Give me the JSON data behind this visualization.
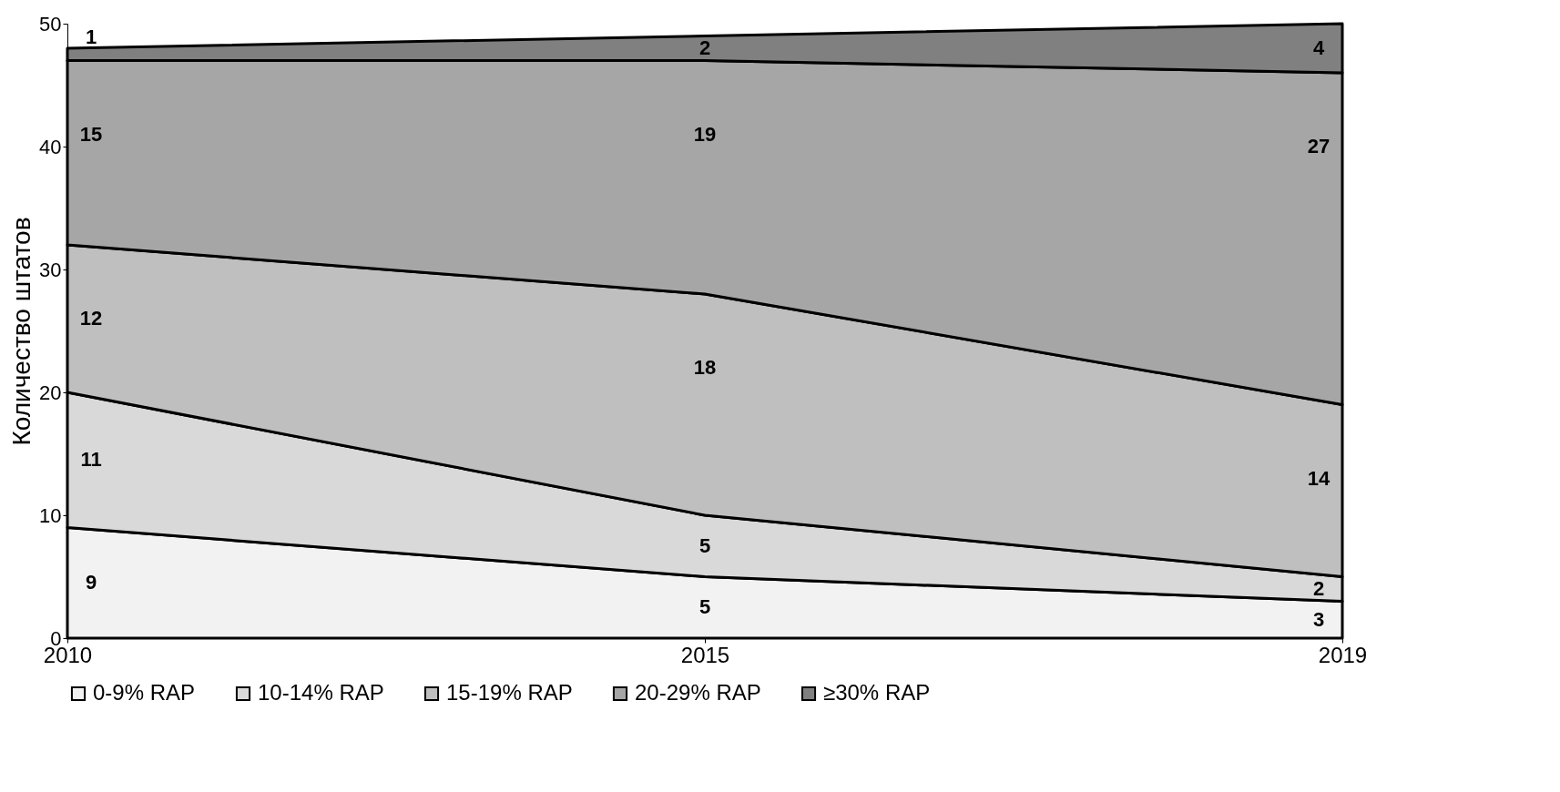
{
  "chart_data": {
    "type": "area",
    "stacked": true,
    "ylabel": "Количество штатов",
    "categories": [
      "2010",
      "2015",
      "2019"
    ],
    "ylim": [
      0,
      50
    ],
    "yticks": [
      0,
      10,
      20,
      30,
      40,
      50
    ],
    "grid": false,
    "legend": "bottom",
    "data_labels": true,
    "series": [
      {
        "name": "0-9% RAP",
        "color": "#f2f2f2",
        "values": [
          9,
          5,
          3
        ]
      },
      {
        "name": "10-14% RAP",
        "color": "#d9d9d9",
        "values": [
          11,
          5,
          2
        ]
      },
      {
        "name": "15-19% RAP",
        "color": "#bfbfbf",
        "values": [
          12,
          18,
          14
        ]
      },
      {
        "name": "20-29% RAP",
        "color": "#a6a6a6",
        "values": [
          15,
          19,
          27
        ]
      },
      {
        "name": "≥30% RAP",
        "color": "#808080",
        "values": [
          1,
          2,
          4
        ]
      }
    ]
  }
}
